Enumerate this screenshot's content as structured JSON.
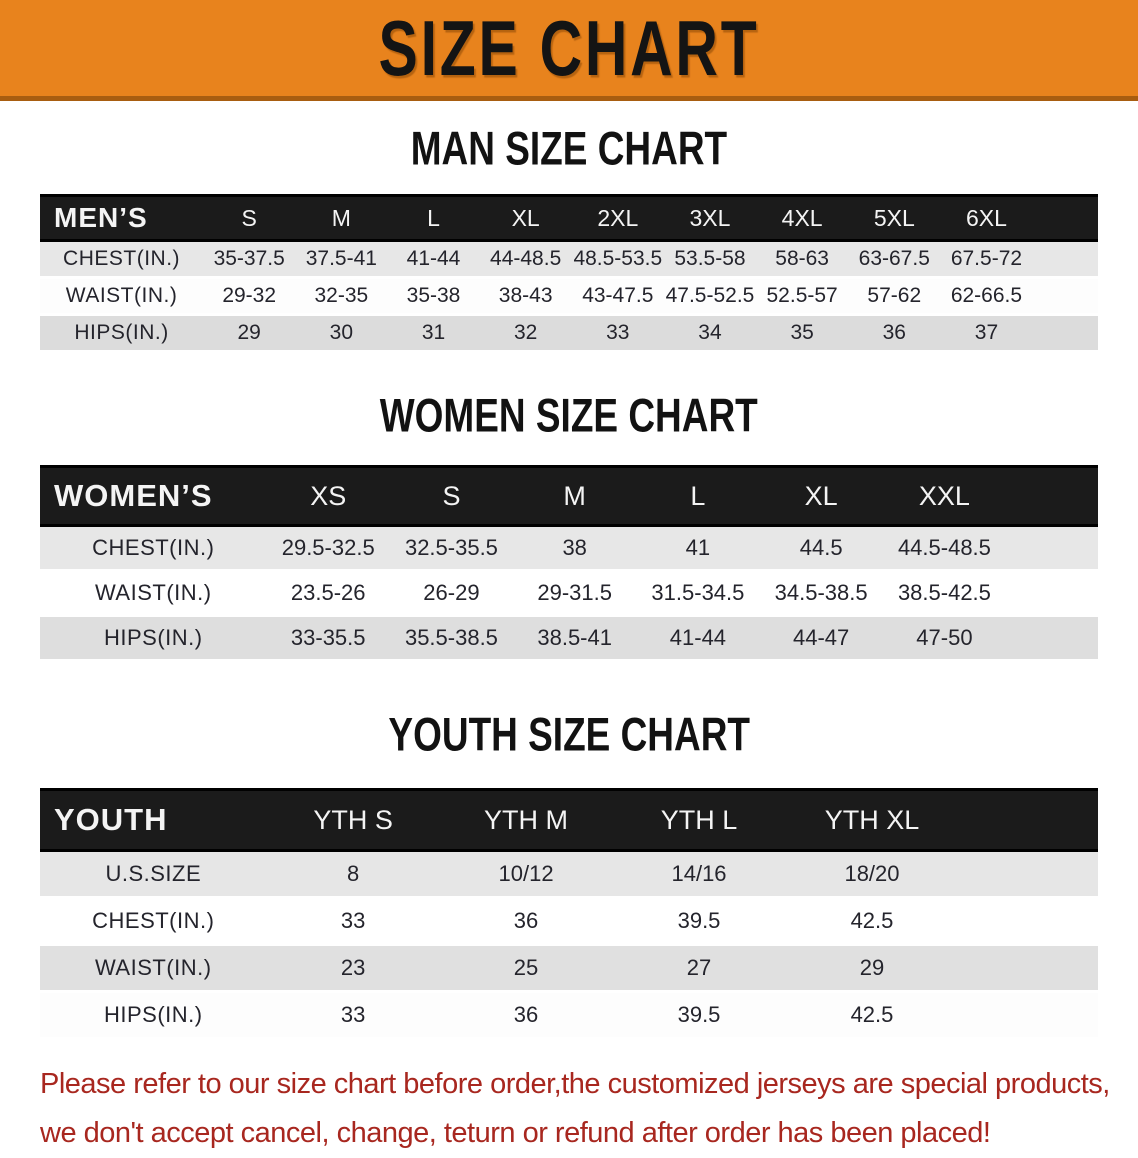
{
  "banner": {
    "title": "SIZE CHART"
  },
  "colors": {
    "banner_bg": "#E8831D",
    "banner_border": "#A85D10",
    "table_header_bar": "#1B1B1B",
    "row_gray": "#E0E0E0",
    "disclaimer_red": "#A8271F"
  },
  "sections": {
    "men": {
      "heading": "MAN SIZE CHART",
      "table": {
        "header": [
          "MEN’S",
          "S",
          "M",
          "L",
          "XL",
          "2XL",
          "3XL",
          "4XL",
          "5XL",
          "6XL"
        ],
        "rows": [
          [
            "CHEST(IN.)",
            "35-37.5",
            "37.5-41",
            "41-44",
            "44-48.5",
            "48.5-53.5",
            "53.5-58",
            "58-63",
            "63-67.5",
            "67.5-72"
          ],
          [
            "WAIST(IN.)",
            "29-32",
            "32-35",
            "35-38",
            "38-43",
            "43-47.5",
            "47.5-52.5",
            "52.5-57",
            "57-62",
            "62-66.5"
          ],
          [
            "HIPS(IN.)",
            "29",
            "30",
            "31",
            "32",
            "33",
            "34",
            "35",
            "36",
            "37"
          ]
        ]
      }
    },
    "women": {
      "heading": "WOMEN SIZE CHART",
      "table": {
        "header": [
          "WOMEN’S",
          "XS",
          "S",
          "M",
          "L",
          "XL",
          "XXL"
        ],
        "rows": [
          [
            "CHEST(IN.)",
            "29.5-32.5",
            "32.5-35.5",
            "38",
            "41",
            "44.5",
            "44.5-48.5"
          ],
          [
            "WAIST(IN.)",
            "23.5-26",
            "26-29",
            "29-31.5",
            "31.5-34.5",
            "34.5-38.5",
            "38.5-42.5"
          ],
          [
            "HIPS(IN.)",
            "33-35.5",
            "35.5-38.5",
            "38.5-41",
            "41-44",
            "44-47",
            "47-50"
          ]
        ]
      }
    },
    "youth": {
      "heading": "YOUTH SIZE CHART",
      "table": {
        "header": [
          "YOUTH",
          "YTH S",
          "YTH M",
          "YTH L",
          "YTH XL"
        ],
        "rows": [
          [
            "U.S.SIZE",
            "8",
            "10/12",
            "14/16",
            "18/20"
          ],
          [
            "CHEST(IN.)",
            "33",
            "36",
            "39.5",
            "42.5"
          ],
          [
            "WAIST(IN.)",
            "23",
            "25",
            "27",
            "29"
          ],
          [
            "HIPS(IN.)",
            "33",
            "36",
            "39.5",
            "42.5"
          ]
        ]
      }
    }
  },
  "disclaimer": {
    "line1": "Please refer to our size chart before order,the customized jerseys are special products,",
    "line2": "we don't accept cancel, change, teturn or refund after order has been placed!"
  }
}
